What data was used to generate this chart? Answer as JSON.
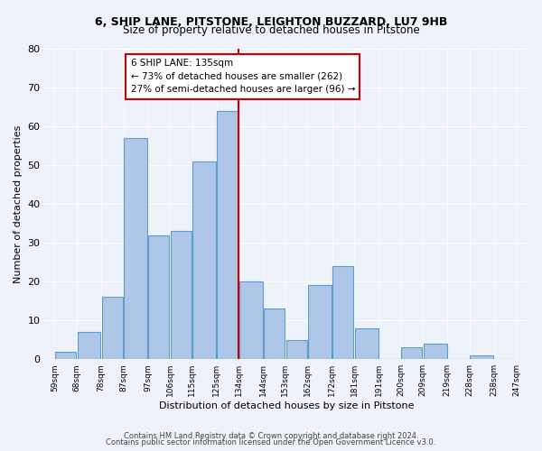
{
  "title1": "6, SHIP LANE, PITSTONE, LEIGHTON BUZZARD, LU7 9HB",
  "title2": "Size of property relative to detached houses in Pitstone",
  "xlabel": "Distribution of detached houses by size in Pitstone",
  "ylabel": "Number of detached properties",
  "bar_left_edges": [
    59,
    68,
    78,
    87,
    97,
    106,
    115,
    125,
    134,
    144,
    153,
    162,
    172,
    181,
    191,
    200,
    209,
    219,
    228,
    238
  ],
  "bar_widths": [
    9,
    10,
    9,
    10,
    9,
    9,
    10,
    9,
    10,
    9,
    9,
    10,
    9,
    10,
    9,
    9,
    10,
    9,
    10,
    9
  ],
  "bar_heights": [
    2,
    7,
    16,
    57,
    32,
    33,
    51,
    64,
    20,
    13,
    5,
    19,
    24,
    8,
    0,
    3,
    4,
    0,
    1,
    0
  ],
  "bar_color": "#aec6e8",
  "bar_edge_color": "#5a9fd4",
  "vline_x": 134,
  "vline_color": "#cc0000",
  "annotation_title": "6 SHIP LANE: 135sqm",
  "annotation_line1": "← 73% of detached houses are smaller (262)",
  "annotation_line2": "27% of semi-detached houses are larger (96) →",
  "annotation_box_color": "#ffffff",
  "annotation_box_edge": "#cc0000",
  "tick_labels": [
    "59sqm",
    "68sqm",
    "78sqm",
    "87sqm",
    "97sqm",
    "106sqm",
    "115sqm",
    "125sqm",
    "134sqm",
    "144sqm",
    "153sqm",
    "162sqm",
    "172sqm",
    "181sqm",
    "191sqm",
    "200sqm",
    "209sqm",
    "219sqm",
    "228sqm",
    "238sqm",
    "247sqm"
  ],
  "tick_positions": [
    59,
    68,
    78,
    87,
    97,
    106,
    115,
    125,
    134,
    144,
    153,
    162,
    172,
    181,
    191,
    200,
    209,
    219,
    228,
    238,
    247
  ],
  "ylim": [
    0,
    80
  ],
  "yticks": [
    0,
    10,
    20,
    30,
    40,
    50,
    60,
    70,
    80
  ],
  "footer1": "Contains HM Land Registry data © Crown copyright and database right 2024.",
  "footer2": "Contains public sector information licensed under the Open Government Licence v3.0.",
  "bg_color": "#eef2f9",
  "plot_bg_color": "#eef2f9"
}
